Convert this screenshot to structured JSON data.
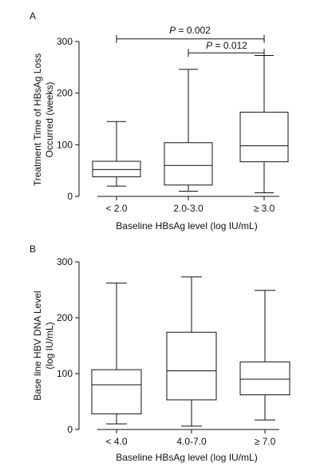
{
  "chart_data": [
    {
      "type": "box",
      "panel": "A",
      "ylabel_line1": "Treatment Time of HBsAg Loss",
      "ylabel_line2": "Occurred (weeks)",
      "xlabel": "Baseline HBsAg level (log IU/mL)",
      "ylim": [
        0,
        300
      ],
      "yticks": [
        0,
        100,
        200,
        300
      ],
      "categories": [
        "< 2.0",
        "2.0-3.0",
        "≥ 3.0"
      ],
      "boxes": [
        {
          "min": 20,
          "q1": 38,
          "median": 52,
          "q3": 68,
          "max": 145
        },
        {
          "min": 10,
          "q1": 22,
          "median": 60,
          "q3": 104,
          "max": 246
        },
        {
          "min": 7,
          "q1": 67,
          "median": 98,
          "q3": 163,
          "max": 273
        }
      ],
      "comparisons": [
        {
          "from": 0,
          "to": 2,
          "level": 305,
          "label_prefix": "P",
          "label_rest": " = 0.002"
        },
        {
          "from": 1,
          "to": 2,
          "level": 278,
          "label_prefix": "P",
          "label_rest": " = 0.012"
        }
      ]
    },
    {
      "type": "box",
      "panel": "B",
      "ylabel_line1": "Base line HBV DNA Level",
      "ylabel_line2": "(log IU/mL)",
      "xlabel": "Baseline HBsAg level (log IU/mL)",
      "ylim": [
        0,
        300
      ],
      "yticks": [
        0,
        100,
        200,
        300
      ],
      "categories": [
        "< 4.0",
        "4.0-7.0",
        "≥ 7.0"
      ],
      "boxes": [
        {
          "min": 10,
          "q1": 28,
          "median": 80,
          "q3": 107,
          "max": 262
        },
        {
          "min": 6,
          "q1": 53,
          "median": 105,
          "q3": 174,
          "max": 273
        },
        {
          "min": 17,
          "q1": 62,
          "median": 90,
          "q3": 121,
          "max": 249
        }
      ],
      "comparisons": []
    }
  ]
}
